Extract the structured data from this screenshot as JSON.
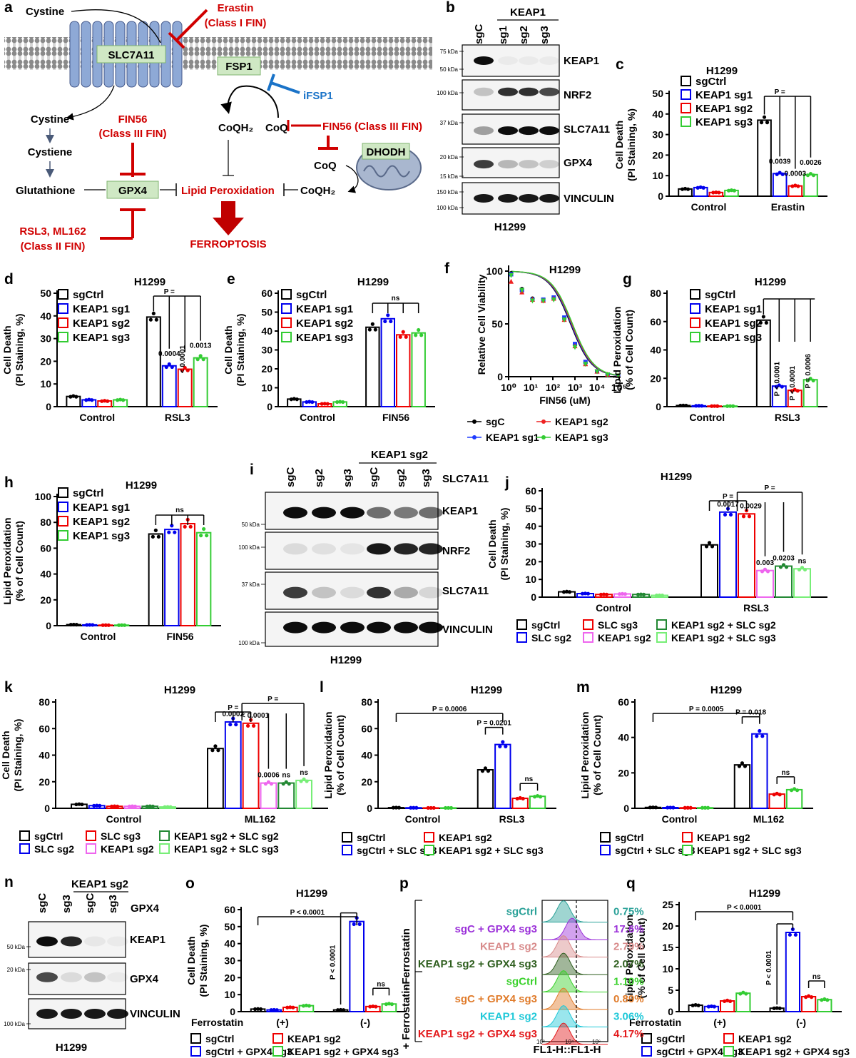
{
  "panels": {
    "a": {
      "label": "a",
      "nodes": {
        "cystine_top": "Cystine",
        "slc7a11": "SLC7A11",
        "erastin": "Erastin",
        "erastin_class": "(Class I FIN)",
        "fsp1": "FSP1",
        "ifsp1": "iFSP1",
        "cystine_in": "Cystine",
        "fin56_left": "FIN56",
        "fin56_left_class": "(Class III FIN)",
        "coqh2_left": "CoQH₂",
        "coq_mid": "CoQ",
        "fin56_right": "FIN56 (Class III FIN)",
        "cystiene": "Cystiene",
        "coq_low": "CoQ",
        "dhodh": "DHODH",
        "glutathione": "Glutathione",
        "gpx4": "GPX4",
        "lipid_perox": "Lipid Peroxidation",
        "coqh2_low": "CoQH₂",
        "rsl3": "RSL3, ML162",
        "rsl3_class": "(Class II FIN)",
        "ferroptosis": "FERROPTOSIS"
      }
    },
    "b": {
      "label": "b",
      "group": "KEAP1",
      "lanes": [
        "sgC",
        "sg1",
        "sg2",
        "sg3"
      ],
      "rows": [
        "KEAP1",
        "NRF2",
        "SLC7A11",
        "GPX4",
        "VINCULIN"
      ],
      "markers": [
        "75 kDa",
        "50 kDa",
        "100 kDa",
        "37 kDa",
        "20 kDa",
        "15 kDa",
        "150 kDa",
        "100 kDa"
      ],
      "cell": "H1299"
    },
    "c": {
      "label": "c"
    },
    "d": {
      "label": "d"
    },
    "e": {
      "label": "e"
    },
    "f": {
      "label": "f"
    },
    "g": {
      "label": "g"
    },
    "h": {
      "label": "h"
    },
    "i": {
      "label": "i",
      "group": "KEAP1 sg2",
      "lanes": [
        "sgC",
        "sg2",
        "sg3",
        "sgC",
        "sg2",
        "sg3"
      ],
      "lane_group": "SLC7A11",
      "rows": [
        "KEAP1",
        "NRF2",
        "SLC7A11",
        "VINCULIN"
      ],
      "markers": [
        "50 kDa",
        "100 kDa",
        "37 kDa",
        "100 kDa"
      ],
      "cell": "H1299"
    },
    "j": {
      "label": "j"
    },
    "k": {
      "label": "k"
    },
    "l": {
      "label": "l"
    },
    "m": {
      "label": "m"
    },
    "n": {
      "label": "n",
      "group": "KEAP1 sg2",
      "lanes": [
        "sgC",
        "sg3",
        "sgC",
        "sg3"
      ],
      "lane_group": "GPX4",
      "rows": [
        "KEAP1",
        "GPX4",
        "VINCULIN"
      ],
      "markers": [
        "50 kDa",
        "20 kDa",
        "100 kDa"
      ],
      "cell": "H1299"
    },
    "o": {
      "label": "o"
    },
    "p": {
      "label": "p",
      "side_minus": "- Ferrostatin",
      "side_plus": "+ Ferrostatin",
      "xlabel": "FL1-H::FL1-H",
      "ticks": [
        "10²",
        "10⁴",
        "10⁶"
      ],
      "rows": [
        {
          "name": "sgCtrl",
          "pct": "0.75%",
          "color": "#2aa198"
        },
        {
          "name": "sgC + GPX4 sg3",
          "pct": "17.6%",
          "color": "#9b30d9"
        },
        {
          "name": "KEAP1 sg2",
          "pct": "2.79%",
          "color": "#d88a8a"
        },
        {
          "name": "KEAP1 sg2 + GPX4 sg3",
          "pct": "2.07%",
          "color": "#2e5e1e"
        },
        {
          "name": "sgCtrl",
          "pct": "1.10%",
          "color": "#39d12b"
        },
        {
          "name": "sgC + GPX4 sg3",
          "pct": "0.89%",
          "color": "#e07b2a"
        },
        {
          "name": "KEAP1 sg2",
          "pct": "3.06%",
          "color": "#1ec8d8"
        },
        {
          "name": "KEAP1 sg2 + GPX4 sg3",
          "pct": "4.17%",
          "color": "#e31a1c"
        }
      ]
    },
    "q": {
      "label": "q"
    }
  },
  "colors": {
    "black": "#000000",
    "blue": "#0000ee",
    "red": "#ee0000",
    "green": "#33cc33",
    "pink": "#ee66ee",
    "darkgreen": "#228833",
    "lightgreen": "#77ee77"
  },
  "chart_data": [
    {
      "id": "c",
      "type": "bar",
      "title": "H1299",
      "ylabel": "Cell Death\n(PI Staining, %)",
      "ylim": [
        0,
        50
      ],
      "yticks": [
        0,
        10,
        20,
        30,
        40,
        50
      ],
      "categories": [
        "Control",
        "Erastin"
      ],
      "series": [
        {
          "name": "sgCtrl",
          "values": [
            3.5,
            37
          ]
        },
        {
          "name": "KEAP1 sg1",
          "values": [
            4.2,
            11
          ]
        },
        {
          "name": "KEAP1 sg2",
          "values": [
            1.8,
            5
          ]
        },
        {
          "name": "KEAP1 sg3",
          "values": [
            2.8,
            10.5
          ]
        }
      ],
      "annotations": [
        "P =",
        "0.0039",
        "0.0003",
        "0.0026"
      ],
      "legend": "top-left"
    },
    {
      "id": "d",
      "type": "bar",
      "title": "H1299",
      "ylabel": "Cell Death\n(PI Staining, %)",
      "ylim": [
        0,
        50
      ],
      "yticks": [
        0,
        10,
        20,
        30,
        40,
        50
      ],
      "categories": [
        "Control",
        "RSL3"
      ],
      "series": [
        {
          "name": "sgCtrl",
          "values": [
            4.5,
            39.5
          ]
        },
        {
          "name": "KEAP1 sg1",
          "values": [
            3,
            18
          ]
        },
        {
          "name": "KEAP1 sg2",
          "values": [
            2.5,
            16.5
          ]
        },
        {
          "name": "KEAP1 sg3",
          "values": [
            3,
            21.5
          ]
        }
      ],
      "annotations": [
        "P =",
        "0.0004",
        "< 0.0001",
        "0.0013"
      ],
      "legend": "top-left"
    },
    {
      "id": "e",
      "type": "bar",
      "title": "H1299",
      "ylabel": "Cell Death\n(PI Staining, %)",
      "ylim": [
        0,
        60
      ],
      "yticks": [
        0,
        10,
        20,
        30,
        40,
        50,
        60
      ],
      "categories": [
        "Control",
        "FIN56"
      ],
      "series": [
        {
          "name": "sgCtrl",
          "values": [
            4,
            42
          ]
        },
        {
          "name": "KEAP1 sg1",
          "values": [
            2.5,
            46.5
          ]
        },
        {
          "name": "KEAP1 sg2",
          "values": [
            1.5,
            38
          ]
        },
        {
          "name": "KEAP1 sg3",
          "values": [
            2.5,
            39
          ]
        }
      ],
      "annotations": [
        "ns"
      ],
      "legend": "top-left"
    },
    {
      "id": "f",
      "type": "line",
      "title": "H1299",
      "ylabel": "Relative Cell Viability",
      "xlabel": "FIN56 (uM)",
      "xscale": "log",
      "xlim": [
        1,
        100000
      ],
      "ylim": [
        0,
        100
      ],
      "yticks": [
        0,
        50,
        100
      ],
      "xticks": [
        "10⁰",
        "10¹",
        "10²",
        "10³",
        "10⁴",
        "10⁵"
      ],
      "x": [
        1.3,
        4,
        12,
        37,
        110,
        330,
        1000,
        3000,
        10000,
        30000,
        90000
      ],
      "series": [
        {
          "name": "sgC",
          "values": [
            98,
            83,
            74,
            73,
            74,
            55,
            30,
            13,
            5,
            2,
            1
          ]
        },
        {
          "name": "KEAP1 sg1",
          "values": [
            97,
            82,
            73,
            73,
            75,
            56,
            31,
            14,
            5,
            2,
            1
          ]
        },
        {
          "name": "KEAP1 sg2",
          "values": [
            90,
            80,
            73,
            72,
            74,
            54,
            29,
            12,
            5,
            2,
            1
          ]
        },
        {
          "name": "KEAP1 sg3",
          "values": [
            96,
            82,
            72,
            72,
            73,
            54,
            28,
            12,
            5,
            2,
            1
          ]
        }
      ],
      "legend": "bottom"
    },
    {
      "id": "g",
      "type": "bar",
      "title": "H1299",
      "ylabel": "Lipid Peroxidation\n(% of Cell Count)",
      "ylim": [
        0,
        80
      ],
      "yticks": [
        0,
        20,
        40,
        60,
        80
      ],
      "categories": [
        "Control",
        "RSL3"
      ],
      "series": [
        {
          "name": "sgCtrl",
          "values": [
            0.8,
            61
          ]
        },
        {
          "name": "KEAP1 sg1",
          "values": [
            0.6,
            14.5
          ]
        },
        {
          "name": "KEAP1 sg2",
          "values": [
            0.4,
            11.5
          ]
        },
        {
          "name": "KEAP1 sg3",
          "values": [
            0.4,
            19
          ]
        }
      ],
      "annotations": [
        "P < 0.0001",
        "P < 0.0001",
        "P = 0.0006"
      ],
      "legend": "top-left"
    },
    {
      "id": "h",
      "type": "bar",
      "title": "H1299",
      "ylabel": "Lipid Peroxidation\n(% of Cell Count)",
      "ylim": [
        0,
        100
      ],
      "yticks": [
        0,
        20,
        40,
        60,
        80,
        100
      ],
      "categories": [
        "Control",
        "FIN56"
      ],
      "series": [
        {
          "name": "sgCtrl",
          "values": [
            0.8,
            71
          ]
        },
        {
          "name": "KEAP1 sg1",
          "values": [
            0.6,
            74.5
          ]
        },
        {
          "name": "KEAP1 sg2",
          "values": [
            0.4,
            79
          ]
        },
        {
          "name": "KEAP1 sg3",
          "values": [
            0.4,
            72
          ]
        }
      ],
      "annotations": [
        "ns"
      ],
      "legend": "top-left"
    },
    {
      "id": "j",
      "type": "bar",
      "title": "H1299",
      "ylabel": "Cell Death\n(PI Staining, %)",
      "ylim": [
        0,
        60
      ],
      "yticks": [
        0,
        10,
        20,
        30,
        40,
        50,
        60
      ],
      "categories": [
        "Control",
        "RSL3"
      ],
      "series": [
        {
          "name": "sgCtrl",
          "values": [
            3,
            29.5
          ]
        },
        {
          "name": "SLC sg2",
          "values": [
            2,
            48
          ]
        },
        {
          "name": "SLC sg3",
          "values": [
            1.5,
            47
          ]
        },
        {
          "name": "KEAP1 sg2",
          "values": [
            1.8,
            15
          ]
        },
        {
          "name": "KEAP1 sg2 + SLC sg2",
          "values": [
            1.5,
            17.5
          ]
        },
        {
          "name": "KEAP1 sg2 + SLC sg3",
          "values": [
            1,
            16
          ]
        }
      ],
      "annotations": [
        "P =",
        "P =",
        "0.0017",
        "0.0029",
        "0.003",
        "0.0203",
        "ns"
      ],
      "legend": "bottom"
    },
    {
      "id": "k",
      "type": "bar",
      "title": "H1299",
      "ylabel": "Cell Death\n(PI Staining, %)",
      "ylim": [
        0,
        80
      ],
      "yticks": [
        0,
        20,
        40,
        60,
        80
      ],
      "categories": [
        "Control",
        "ML162"
      ],
      "series": [
        {
          "name": "sgCtrl",
          "values": [
            3,
            45
          ]
        },
        {
          "name": "SLC sg2",
          "values": [
            2,
            65
          ]
        },
        {
          "name": "SLC sg3",
          "values": [
            1.5,
            64
          ]
        },
        {
          "name": "KEAP1 sg2",
          "values": [
            1.5,
            19
          ]
        },
        {
          "name": "KEAP1 sg2 + SLC sg2",
          "values": [
            1.5,
            19
          ]
        },
        {
          "name": "KEAP1 sg2 + SLC sg3",
          "values": [
            1,
            21
          ]
        }
      ],
      "annotations": [
        "P =",
        "P =",
        "0.0002",
        "< 0.0001",
        "0.0006",
        "ns",
        "ns"
      ],
      "legend": "bottom"
    },
    {
      "id": "l",
      "type": "bar",
      "title": "H1299",
      "ylabel": "Lipid Peroxidation\n(% of Cell Count)",
      "ylim": [
        0,
        80
      ],
      "yticks": [
        0,
        20,
        40,
        60,
        80
      ],
      "categories": [
        "Control",
        "RSL3"
      ],
      "series": [
        {
          "name": "sgCtrl",
          "values": [
            0.5,
            29
          ]
        },
        {
          "name": "sgCtrl + SLC sg3",
          "values": [
            0.4,
            48
          ]
        },
        {
          "name": "KEAP1 sg2",
          "values": [
            0.3,
            7.5
          ]
        },
        {
          "name": "KEAP1 sg2 + SLC sg3",
          "values": [
            0.3,
            9
          ]
        }
      ],
      "annotations": [
        "P = 0.0006",
        "P = 0.0201",
        "ns"
      ],
      "legend": "bottom"
    },
    {
      "id": "m",
      "type": "bar",
      "title": "H1299",
      "ylabel": "Lipid Peroxidation\n(% of Cell Count)",
      "ylim": [
        0,
        60
      ],
      "yticks": [
        0,
        20,
        40,
        60
      ],
      "categories": [
        "Control",
        "ML162"
      ],
      "series": [
        {
          "name": "sgCtrl",
          "values": [
            0.5,
            24.5
          ]
        },
        {
          "name": "sgCtrl + SLC sg3",
          "values": [
            0.4,
            42
          ]
        },
        {
          "name": "KEAP1 sg2",
          "values": [
            0.3,
            8
          ]
        },
        {
          "name": "KEAP1 sg2 + SLC sg3",
          "values": [
            0.3,
            10.5
          ]
        }
      ],
      "annotations": [
        "P = 0.0005",
        "P = 0.018",
        "ns"
      ],
      "legend": "bottom"
    },
    {
      "id": "o",
      "type": "bar",
      "title": "H1299",
      "ylabel": "Cell Death\n(PI Staining, %)",
      "ylim": [
        0,
        60
      ],
      "yticks": [
        0,
        10,
        20,
        30,
        40,
        50,
        60
      ],
      "categories": [
        "(+)",
        "(-)"
      ],
      "category_label": "Ferrostatin",
      "series": [
        {
          "name": "sgCtrl",
          "values": [
            1.5,
            1
          ]
        },
        {
          "name": "sgCtrl + GPX4 sg3",
          "values": [
            1,
            53
          ]
        },
        {
          "name": "KEAP1 sg2",
          "values": [
            2.5,
            3
          ]
        },
        {
          "name": "KEAP1 sg2 + GPX4 sg3",
          "values": [
            3.5,
            4.5
          ]
        }
      ],
      "annotations": [
        "P < 0.0001",
        "P < 0.0001",
        "ns"
      ],
      "legend": "bottom"
    },
    {
      "id": "q",
      "type": "bar",
      "title": "H1299",
      "ylabel": "Lipid Peroxidation\n(% of Cell Count)",
      "ylim": [
        0,
        25
      ],
      "yticks": [
        0,
        5,
        10,
        15,
        20,
        25
      ],
      "categories": [
        "(+)",
        "(-)"
      ],
      "category_label": "Ferrostatin",
      "series": [
        {
          "name": "sgCtrl",
          "values": [
            1.5,
            0.8
          ]
        },
        {
          "name": "sgCtrl + GPX4 sg3",
          "values": [
            1.2,
            18.5
          ]
        },
        {
          "name": "KEAP1 sg2",
          "values": [
            2.5,
            3.5
          ]
        },
        {
          "name": "KEAP1 sg2 + GPX4 sg3",
          "values": [
            4.3,
            2.8
          ]
        }
      ],
      "annotations": [
        "P < 0.0001",
        "P < 0.0001",
        "ns"
      ],
      "legend": "bottom"
    }
  ]
}
